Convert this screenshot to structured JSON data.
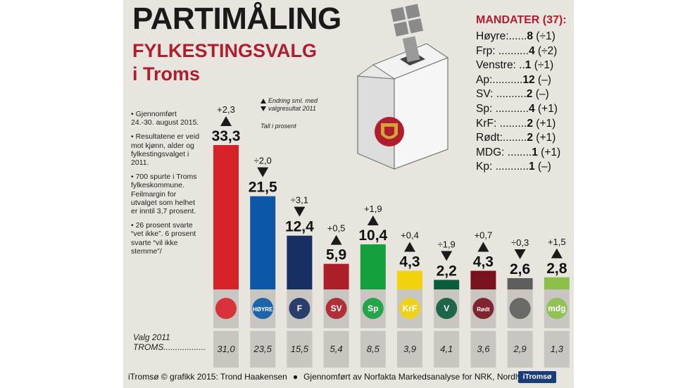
{
  "header": {
    "title": "PARTIMÅLING",
    "subtitle_line1": "FYLKESTINGSVALG",
    "subtitle_line2": "i Troms"
  },
  "notes": [
    "• Gjennomført 24.-30. august 2015.",
    "• Resultatene er veid mot kjønn, alder og fylkestingsvalget i 2011.",
    "• 700 spurte i Troms fylkeskommune. Feilmargin for utvalget som helhet er inntil 3,7 prosent.",
    "• 26 prosent svarte “vet ikke”. 6 prosent svarte “vil ikke stemme”/"
  ],
  "legend": {
    "up_label": "Endring sml. med",
    "down_label": "valgresultat 2011",
    "unit": "Tall i prosent"
  },
  "mandates": {
    "title": "MANDATER (37):",
    "rows": [
      {
        "party": "Høyre:......",
        "seats": "8",
        "change": "(÷1)"
      },
      {
        "party": "Frp: ..........",
        "seats": "4",
        "change": "(÷2)"
      },
      {
        "party": "Venstre: ..",
        "seats": "1",
        "change": "(÷1)"
      },
      {
        "party": "Ap:..........",
        "seats": "12",
        "change": "(–)"
      },
      {
        "party": "SV: ..........",
        "seats": "2",
        "change": "(–)"
      },
      {
        "party": "Sp: ...........",
        "seats": "4",
        "change": "(+1)"
      },
      {
        "party": "KrF: .........",
        "seats": "2",
        "change": "(+1)"
      },
      {
        "party": "Rødt:........",
        "seats": "2",
        "change": "(+1)"
      },
      {
        "party": "MDG: ........",
        "seats": "1",
        "change": "(+1)"
      },
      {
        "party": "Kp: ...........",
        "seats": "1",
        "change": "(–)"
      }
    ]
  },
  "valg_label": {
    "line1": "Valg 2011",
    "line2": "TROMS.................."
  },
  "footer": {
    "credit": "iTromsø © grafikk 2015: Trond Haakensen",
    "source": "Gjennomført av Norfakta Markedsanalyse for NRK, Nordlys og",
    "logo": "iTromsø"
  },
  "chart_data": {
    "type": "bar",
    "categories": [
      "Ap",
      "Høyre",
      "Frp",
      "SV",
      "Sp",
      "KrF",
      "Venstre",
      "Rødt",
      "Kp",
      "MDG"
    ],
    "values": [
      33.3,
      21.5,
      12.4,
      5.9,
      10.4,
      4.3,
      2.2,
      4.3,
      2.6,
      2.8
    ],
    "value_labels": [
      "33,3",
      "21,5",
      "12,4",
      "5,9",
      "10,4",
      "4,3",
      "2,2",
      "4,3",
      "2,6",
      "2,8"
    ],
    "changes": [
      "+2,3",
      "÷2,0",
      "÷3,1",
      "+0,5",
      "+1,9",
      "+0,4",
      "÷1,9",
      "+0,7",
      "÷0,3",
      "+1,5"
    ],
    "change_direction": [
      "up",
      "down",
      "down",
      "up",
      "up",
      "up",
      "down",
      "up",
      "down",
      "up"
    ],
    "results_2011": [
      "31,0",
      "23,5",
      "15,5",
      "5,4",
      "8,5",
      "3,9",
      "4,1",
      "3,6",
      "2,9",
      "1,3"
    ],
    "colors": [
      "#d8222a",
      "#0c58a6",
      "#172f63",
      "#ad1f28",
      "#14a03c",
      "#f2d20d",
      "#0b5b3d",
      "#78121f",
      "#5e5e5e",
      "#8cc04b"
    ],
    "logo_texts": [
      "",
      "HØYRE",
      "F",
      "SV",
      "Sp",
      "KrF",
      "V",
      "Rødt",
      "",
      "mdg"
    ],
    "ylim": [
      0,
      33.3
    ]
  }
}
